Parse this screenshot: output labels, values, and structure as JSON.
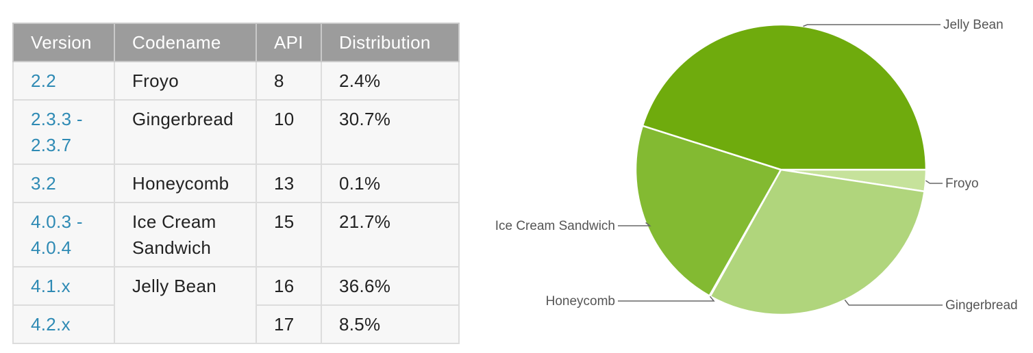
{
  "table": {
    "headers": [
      "Version",
      "Codename",
      "API",
      "Distribution"
    ],
    "rows": [
      {
        "version": "2.2",
        "codename": "Froyo",
        "api": "8",
        "distribution": "2.4%"
      },
      {
        "version": "2.3.3 - 2.3.7",
        "codename": "Gingerbread",
        "api": "10",
        "distribution": "30.7%"
      },
      {
        "version": "3.2",
        "codename": "Honeycomb",
        "api": "13",
        "distribution": "0.1%"
      },
      {
        "version": "4.0.3 - 4.0.4",
        "codename": "Ice Cream Sandwich",
        "api": "15",
        "distribution": "21.7%"
      },
      {
        "version": "4.1.x",
        "codename": "Jelly Bean",
        "api": "16",
        "distribution": "36.6%"
      },
      {
        "version": "4.2.x",
        "codename": "Jelly Bean",
        "api": "17",
        "distribution": "8.5%"
      }
    ]
  },
  "chart_data": {
    "type": "pie",
    "slices": [
      {
        "label": "Froyo",
        "value": 2.4,
        "color": "#c6e29b"
      },
      {
        "label": "Gingerbread",
        "value": 30.7,
        "color": "#b0d57c"
      },
      {
        "label": "Honeycomb",
        "value": 0.1,
        "color": "#9ac85f"
      },
      {
        "label": "Ice Cream Sandwich",
        "value": 21.7,
        "color": "#83ba32"
      },
      {
        "label": "Jelly Bean",
        "value": 45.1,
        "color": "#6fab0d"
      }
    ],
    "start": "3 o'clock",
    "direction": "clockwise"
  }
}
